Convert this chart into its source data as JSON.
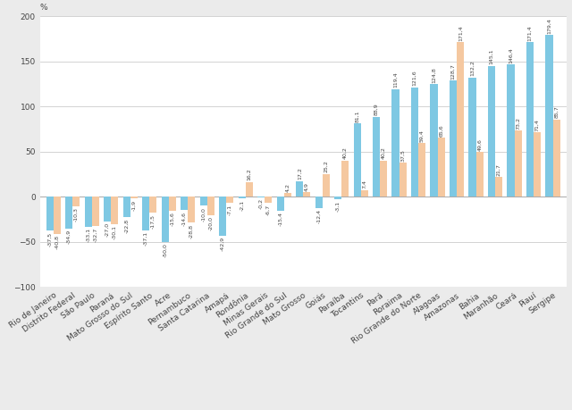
{
  "categories": [
    "Rio de Janeiro",
    "Distrito Federal",
    "São Paulo",
    "Paraná",
    "Mato Grosso do Sul",
    "Espírito Santo",
    "Acre",
    "Pernambuco",
    "Santa Catarina",
    "Amapá",
    "Rondônia",
    "Minas Gerais",
    "Rio Grande do Sul",
    "Mato Grosso",
    "Goiás",
    "Paraíba",
    "Tocantins",
    "Pará",
    "Roraima",
    "Rio Grande do Norte",
    "Alagoas",
    "Amazonas",
    "Bahia",
    "Maranhão",
    "Ceará",
    "Piauí",
    "Sergipe"
  ],
  "series1": [
    -37.5,
    -34.9,
    -33.1,
    -27.0,
    -22.8,
    -37.1,
    -50.0,
    -14.6,
    -10.0,
    -42.9,
    -2.1,
    -0.2,
    -15.4,
    17.2,
    -12.4,
    -3.1,
    81.1,
    88.9,
    119.4,
    121.6,
    124.8,
    128.7,
    132.2,
    145.1,
    146.4,
    171.4,
    179.4
  ],
  "series2": [
    -40.8,
    -10.3,
    -32.7,
    -30.1,
    -1.9,
    -17.5,
    -15.6,
    -28.8,
    -20.0,
    -7.1,
    16.2,
    -6.7,
    4.2,
    4.9,
    25.2,
    40.2,
    7.4,
    40.2,
    37.5,
    59.4,
    65.6,
    171.4,
    49.6,
    21.7,
    73.2,
    71.4,
    85.7
  ],
  "bar_color1": "#7EC8E3",
  "bar_color2": "#F5C8A0",
  "percent_label": "%",
  "ylim": [
    -100,
    200
  ],
  "yticks": [
    -100,
    -50,
    0,
    50,
    100,
    150,
    200
  ],
  "background_color": "#EBEBEB",
  "plot_background": "#FFFFFF",
  "label_fontsize": 4.5,
  "axis_fontsize": 6.5,
  "bar_width": 0.38
}
